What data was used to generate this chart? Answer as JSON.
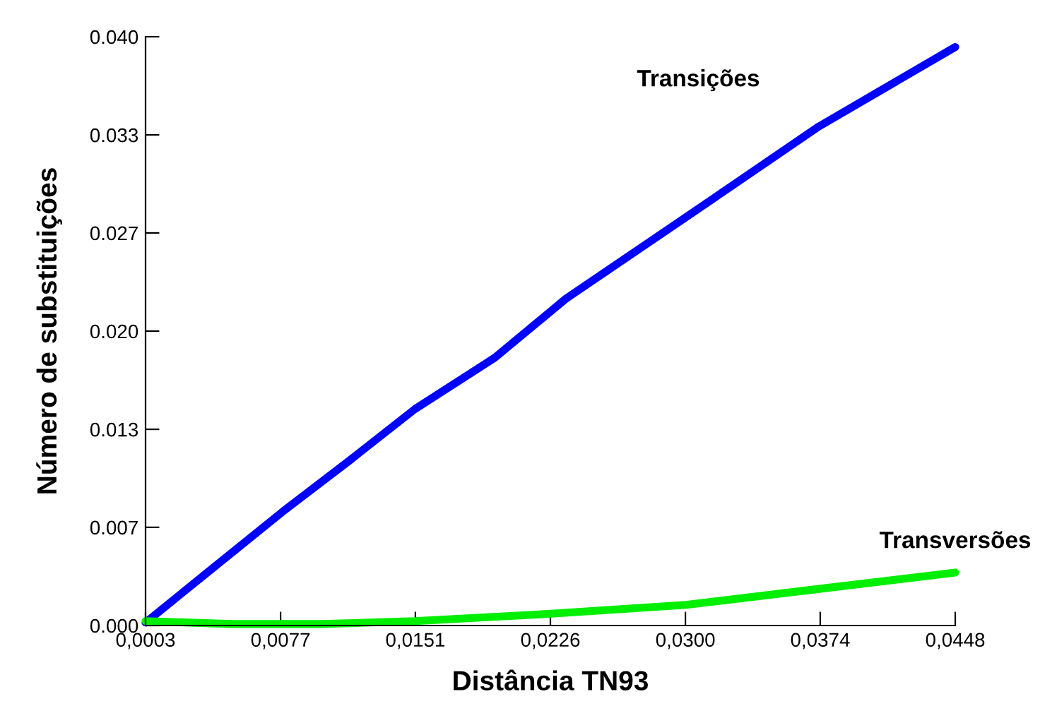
{
  "chart_data": {
    "type": "line",
    "xlabel": "Distância TN93",
    "ylabel": "Número de substituições",
    "series": [
      {
        "name": "Transições",
        "color": "#0000ff",
        "x": [
          0.0003,
          0.004,
          0.0078,
          0.0115,
          0.0151,
          0.0195,
          0.0234,
          0.0296,
          0.0373,
          0.0448
        ],
        "values": [
          0.0002,
          0.0039,
          0.0077,
          0.0112,
          0.0147,
          0.0182,
          0.0222,
          0.0274,
          0.0339,
          0.0393
        ]
      },
      {
        "name": "Transversões",
        "color": "#00ee00",
        "x": [
          0.0003,
          0.005,
          0.01,
          0.0151,
          0.0226,
          0.03,
          0.0374,
          0.0448
        ],
        "values": [
          0.0003,
          0.0001,
          0.0001,
          0.0003,
          0.0008,
          0.0014,
          0.0025,
          0.0036
        ]
      }
    ],
    "xlim": [
      0.0003,
      0.0448
    ],
    "xticks": [
      {
        "value": 0.0003,
        "label": "0,0003"
      },
      {
        "value": 0.00772,
        "label": "0,0077"
      },
      {
        "value": 0.01513,
        "label": "0,0151"
      },
      {
        "value": 0.02255,
        "label": "0,0226"
      },
      {
        "value": 0.02997,
        "label": "0,0300"
      },
      {
        "value": 0.03738,
        "label": "0,0374"
      },
      {
        "value": 0.0448,
        "label": "0,0448"
      }
    ],
    "ylim": [
      0,
      0.04
    ],
    "yticks": [
      {
        "value": 0,
        "label": "0.000"
      },
      {
        "value": 0.00667,
        "label": "0.007"
      },
      {
        "value": 0.01333,
        "label": "0.013"
      },
      {
        "value": 0.02,
        "label": "0.020"
      },
      {
        "value": 0.02667,
        "label": "0.027"
      },
      {
        "value": 0.03333,
        "label": "0.033"
      },
      {
        "value": 0.04,
        "label": "0.040"
      }
    ],
    "grid": false,
    "legend": false,
    "marker": "none",
    "line_style": "solid"
  }
}
